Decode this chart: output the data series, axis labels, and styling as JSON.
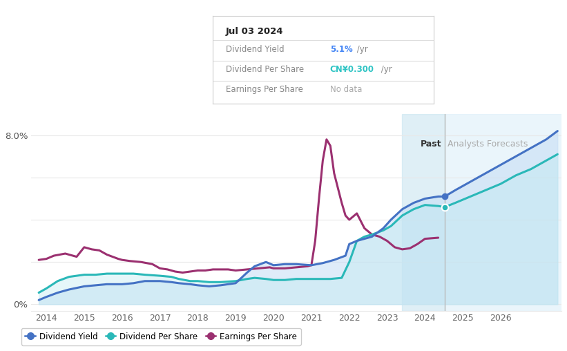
{
  "title_box": {
    "date": "Jul 03 2024",
    "dividend_yield_label": "Dividend Yield",
    "dividend_yield_value": "5.1%",
    "dividend_yield_value_color": "#4284f5",
    "dividend_yield_suffix": " /yr",
    "dividend_per_share_label": "Dividend Per Share",
    "dividend_per_share_value": "CN¥0.300",
    "dividend_per_share_value_color": "#2ec4c4",
    "dividend_per_share_suffix": " /yr",
    "earnings_per_share_label": "Earnings Per Share",
    "earnings_per_share_value": "No data"
  },
  "past_label": "Past",
  "forecast_label": "Analysts Forecasts",
  "ymin": -0.3,
  "ymax": 9.0,
  "xmin": 2013.6,
  "xmax": 2027.6,
  "past_end": 2024.52,
  "shaded_past_start": 2023.4,
  "bg_color": "#ffffff",
  "shade_color_light": "#daeef8",
  "shade_color_medium": "#c5e3f0",
  "grid_color": "#e8e8e8",
  "dividend_yield": {
    "x": [
      2013.8,
      2014.0,
      2014.3,
      2014.6,
      2015.0,
      2015.3,
      2015.6,
      2016.0,
      2016.3,
      2016.6,
      2017.0,
      2017.3,
      2017.5,
      2017.8,
      2018.0,
      2018.3,
      2018.6,
      2019.0,
      2019.3,
      2019.5,
      2019.8,
      2020.0,
      2020.3,
      2020.6,
      2021.0,
      2021.3,
      2021.6,
      2021.9,
      2022.0,
      2022.2,
      2022.4,
      2022.6,
      2022.9,
      2023.1,
      2023.4,
      2023.7,
      2024.0,
      2024.35,
      2024.52,
      2024.8,
      2025.2,
      2025.6,
      2026.0,
      2026.4,
      2026.8,
      2027.2,
      2027.5
    ],
    "y": [
      0.2,
      0.35,
      0.55,
      0.7,
      0.85,
      0.9,
      0.95,
      0.95,
      1.0,
      1.1,
      1.1,
      1.05,
      1.0,
      0.95,
      0.9,
      0.85,
      0.9,
      1.0,
      1.5,
      1.8,
      2.0,
      1.85,
      1.9,
      1.9,
      1.85,
      1.95,
      2.1,
      2.3,
      2.85,
      3.0,
      3.1,
      3.2,
      3.6,
      4.0,
      4.5,
      4.8,
      5.0,
      5.1,
      5.1,
      5.4,
      5.8,
      6.2,
      6.6,
      7.0,
      7.4,
      7.8,
      8.2
    ],
    "color": "#4472c4",
    "linewidth": 2.2
  },
  "dividend_per_share": {
    "x": [
      2013.8,
      2014.0,
      2014.3,
      2014.6,
      2015.0,
      2015.3,
      2015.6,
      2016.0,
      2016.3,
      2016.6,
      2017.0,
      2017.3,
      2017.5,
      2017.8,
      2018.0,
      2018.3,
      2018.6,
      2019.0,
      2019.3,
      2019.5,
      2019.8,
      2020.0,
      2020.3,
      2020.6,
      2021.0,
      2021.3,
      2021.5,
      2021.8,
      2022.0,
      2022.2,
      2022.4,
      2022.6,
      2022.9,
      2023.1,
      2023.4,
      2023.7,
      2024.0,
      2024.35,
      2024.52,
      2024.8,
      2025.2,
      2025.6,
      2026.0,
      2026.4,
      2026.8,
      2027.2,
      2027.5
    ],
    "y": [
      0.55,
      0.75,
      1.1,
      1.3,
      1.4,
      1.4,
      1.45,
      1.45,
      1.45,
      1.4,
      1.35,
      1.3,
      1.2,
      1.1,
      1.1,
      1.05,
      1.05,
      1.1,
      1.2,
      1.25,
      1.2,
      1.15,
      1.15,
      1.2,
      1.2,
      1.2,
      1.2,
      1.25,
      2.0,
      3.0,
      3.2,
      3.3,
      3.5,
      3.7,
      4.2,
      4.5,
      4.7,
      4.65,
      4.6,
      4.8,
      5.1,
      5.4,
      5.7,
      6.1,
      6.4,
      6.8,
      7.1
    ],
    "color": "#2ab8b8",
    "linewidth": 2.2
  },
  "earnings_per_share": {
    "x": [
      2013.8,
      2014.0,
      2014.2,
      2014.5,
      2014.8,
      2015.0,
      2015.2,
      2015.4,
      2015.6,
      2015.9,
      2016.0,
      2016.2,
      2016.5,
      2016.8,
      2017.0,
      2017.2,
      2017.4,
      2017.6,
      2017.8,
      2018.0,
      2018.2,
      2018.4,
      2018.6,
      2018.8,
      2019.0,
      2019.3,
      2019.6,
      2019.9,
      2020.0,
      2020.3,
      2020.6,
      2020.9,
      2021.0,
      2021.1,
      2021.2,
      2021.3,
      2021.4,
      2021.5,
      2021.6,
      2021.8,
      2021.9,
      2022.0,
      2022.2,
      2022.4,
      2022.6,
      2022.8,
      2023.0,
      2023.2,
      2023.4,
      2023.6,
      2023.8,
      2024.0,
      2024.35
    ],
    "y": [
      2.1,
      2.15,
      2.3,
      2.4,
      2.25,
      2.7,
      2.6,
      2.55,
      2.35,
      2.15,
      2.1,
      2.05,
      2.0,
      1.9,
      1.7,
      1.65,
      1.55,
      1.5,
      1.55,
      1.6,
      1.6,
      1.65,
      1.65,
      1.65,
      1.6,
      1.65,
      1.7,
      1.75,
      1.7,
      1.7,
      1.75,
      1.8,
      1.85,
      3.0,
      5.0,
      6.8,
      7.8,
      7.5,
      6.2,
      4.8,
      4.2,
      4.0,
      4.3,
      3.6,
      3.3,
      3.2,
      3.0,
      2.7,
      2.6,
      2.65,
      2.85,
      3.1,
      3.15
    ],
    "color": "#9b3070",
    "linewidth": 2.2
  },
  "legend": [
    {
      "label": "Dividend Yield",
      "color": "#4472c4"
    },
    {
      "label": "Dividend Per Share",
      "color": "#2ab8b8"
    },
    {
      "label": "Earnings Per Share",
      "color": "#9b3070"
    }
  ],
  "xticks": [
    2014,
    2015,
    2016,
    2017,
    2018,
    2019,
    2020,
    2021,
    2022,
    2023,
    2024,
    2025,
    2026
  ]
}
